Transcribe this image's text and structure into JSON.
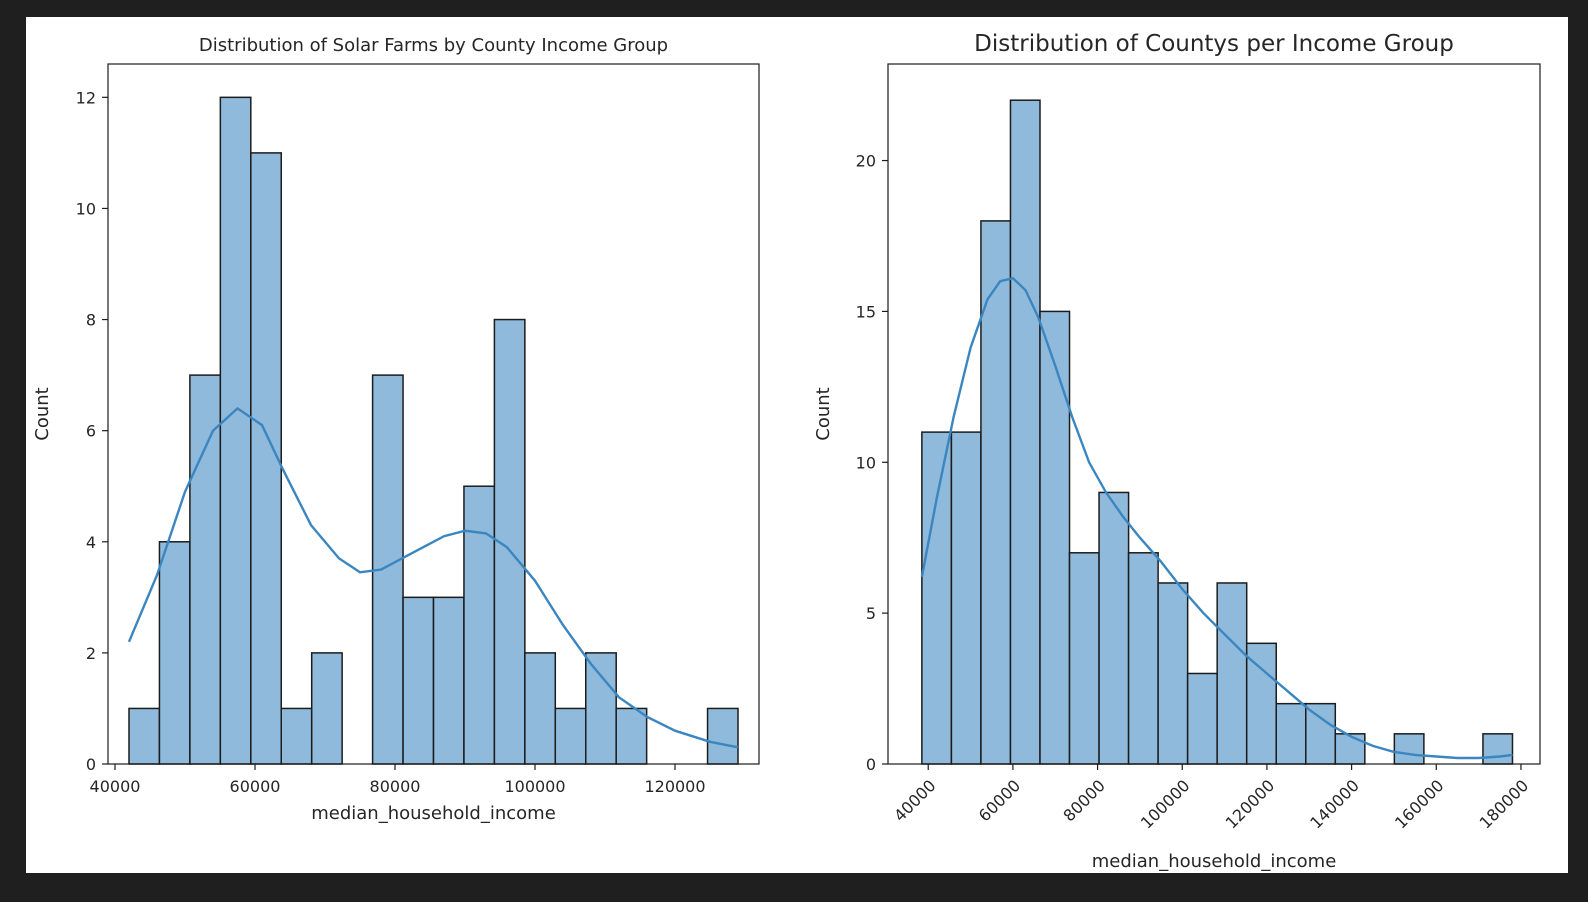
{
  "chart_data": [
    {
      "type": "bar",
      "title": "Distribution of Solar Farms by County Income Group",
      "xlabel": "median_household_income",
      "ylabel": "Count",
      "xlim": [
        39000,
        132000
      ],
      "ylim": [
        0,
        12.6
      ],
      "xticks": [
        40000,
        60000,
        80000,
        100000,
        120000
      ],
      "yticks": [
        0,
        2,
        4,
        6,
        8,
        10,
        12
      ],
      "bin_start": 42000,
      "bin_width": 4350,
      "values": [
        1,
        4,
        7,
        12,
        11,
        1,
        2,
        0,
        7,
        3,
        3,
        5,
        8,
        2,
        1,
        2,
        1,
        0,
        0,
        1
      ],
      "kde": {
        "x": [
          42000,
          46000,
          50000,
          54000,
          57500,
          61000,
          64000,
          68000,
          72000,
          75000,
          78000,
          81000,
          84000,
          87000,
          90000,
          93000,
          96000,
          100000,
          104000,
          108000,
          112000,
          116000,
          120000,
          125000,
          129000
        ],
        "y": [
          2.2,
          3.4,
          4.9,
          6.0,
          6.4,
          6.1,
          5.3,
          4.3,
          3.7,
          3.45,
          3.5,
          3.7,
          3.9,
          4.1,
          4.2,
          4.15,
          3.9,
          3.3,
          2.5,
          1.8,
          1.2,
          0.85,
          0.6,
          0.4,
          0.3
        ]
      },
      "grid": false
    },
    {
      "type": "bar",
      "title": "Distribution of Countys per Income Group",
      "xlabel": "median_household_income",
      "ylabel": "Count",
      "xlim": [
        30500,
        184500
      ],
      "ylim": [
        0,
        23.2
      ],
      "xticks": [
        40000,
        60000,
        80000,
        100000,
        120000,
        140000,
        160000,
        180000
      ],
      "yticks": [
        0,
        5,
        10,
        15,
        20
      ],
      "bin_start": 38500,
      "bin_width": 6975,
      "values": [
        11,
        11,
        18,
        22,
        15,
        7,
        9,
        7,
        6,
        3,
        6,
        4,
        2,
        2,
        1,
        0,
        1,
        0,
        0,
        1
      ],
      "kde": {
        "x": [
          38500,
          42000,
          46000,
          50000,
          54000,
          57000,
          60000,
          63000,
          66000,
          70000,
          74000,
          78000,
          82000,
          86000,
          90000,
          95000,
          100000,
          105000,
          110000,
          115000,
          120000,
          125000,
          130000,
          135000,
          140000,
          145000,
          150000,
          155000,
          160000,
          165000,
          170000,
          175000,
          178000
        ],
        "y": [
          6.2,
          8.8,
          11.5,
          13.8,
          15.4,
          16.0,
          16.1,
          15.7,
          14.8,
          13.2,
          11.5,
          10.0,
          9.0,
          8.2,
          7.5,
          6.7,
          5.8,
          5.0,
          4.3,
          3.6,
          3.0,
          2.4,
          1.8,
          1.3,
          0.9,
          0.6,
          0.4,
          0.3,
          0.25,
          0.2,
          0.2,
          0.25,
          0.3
        ]
      },
      "grid": false
    }
  ]
}
